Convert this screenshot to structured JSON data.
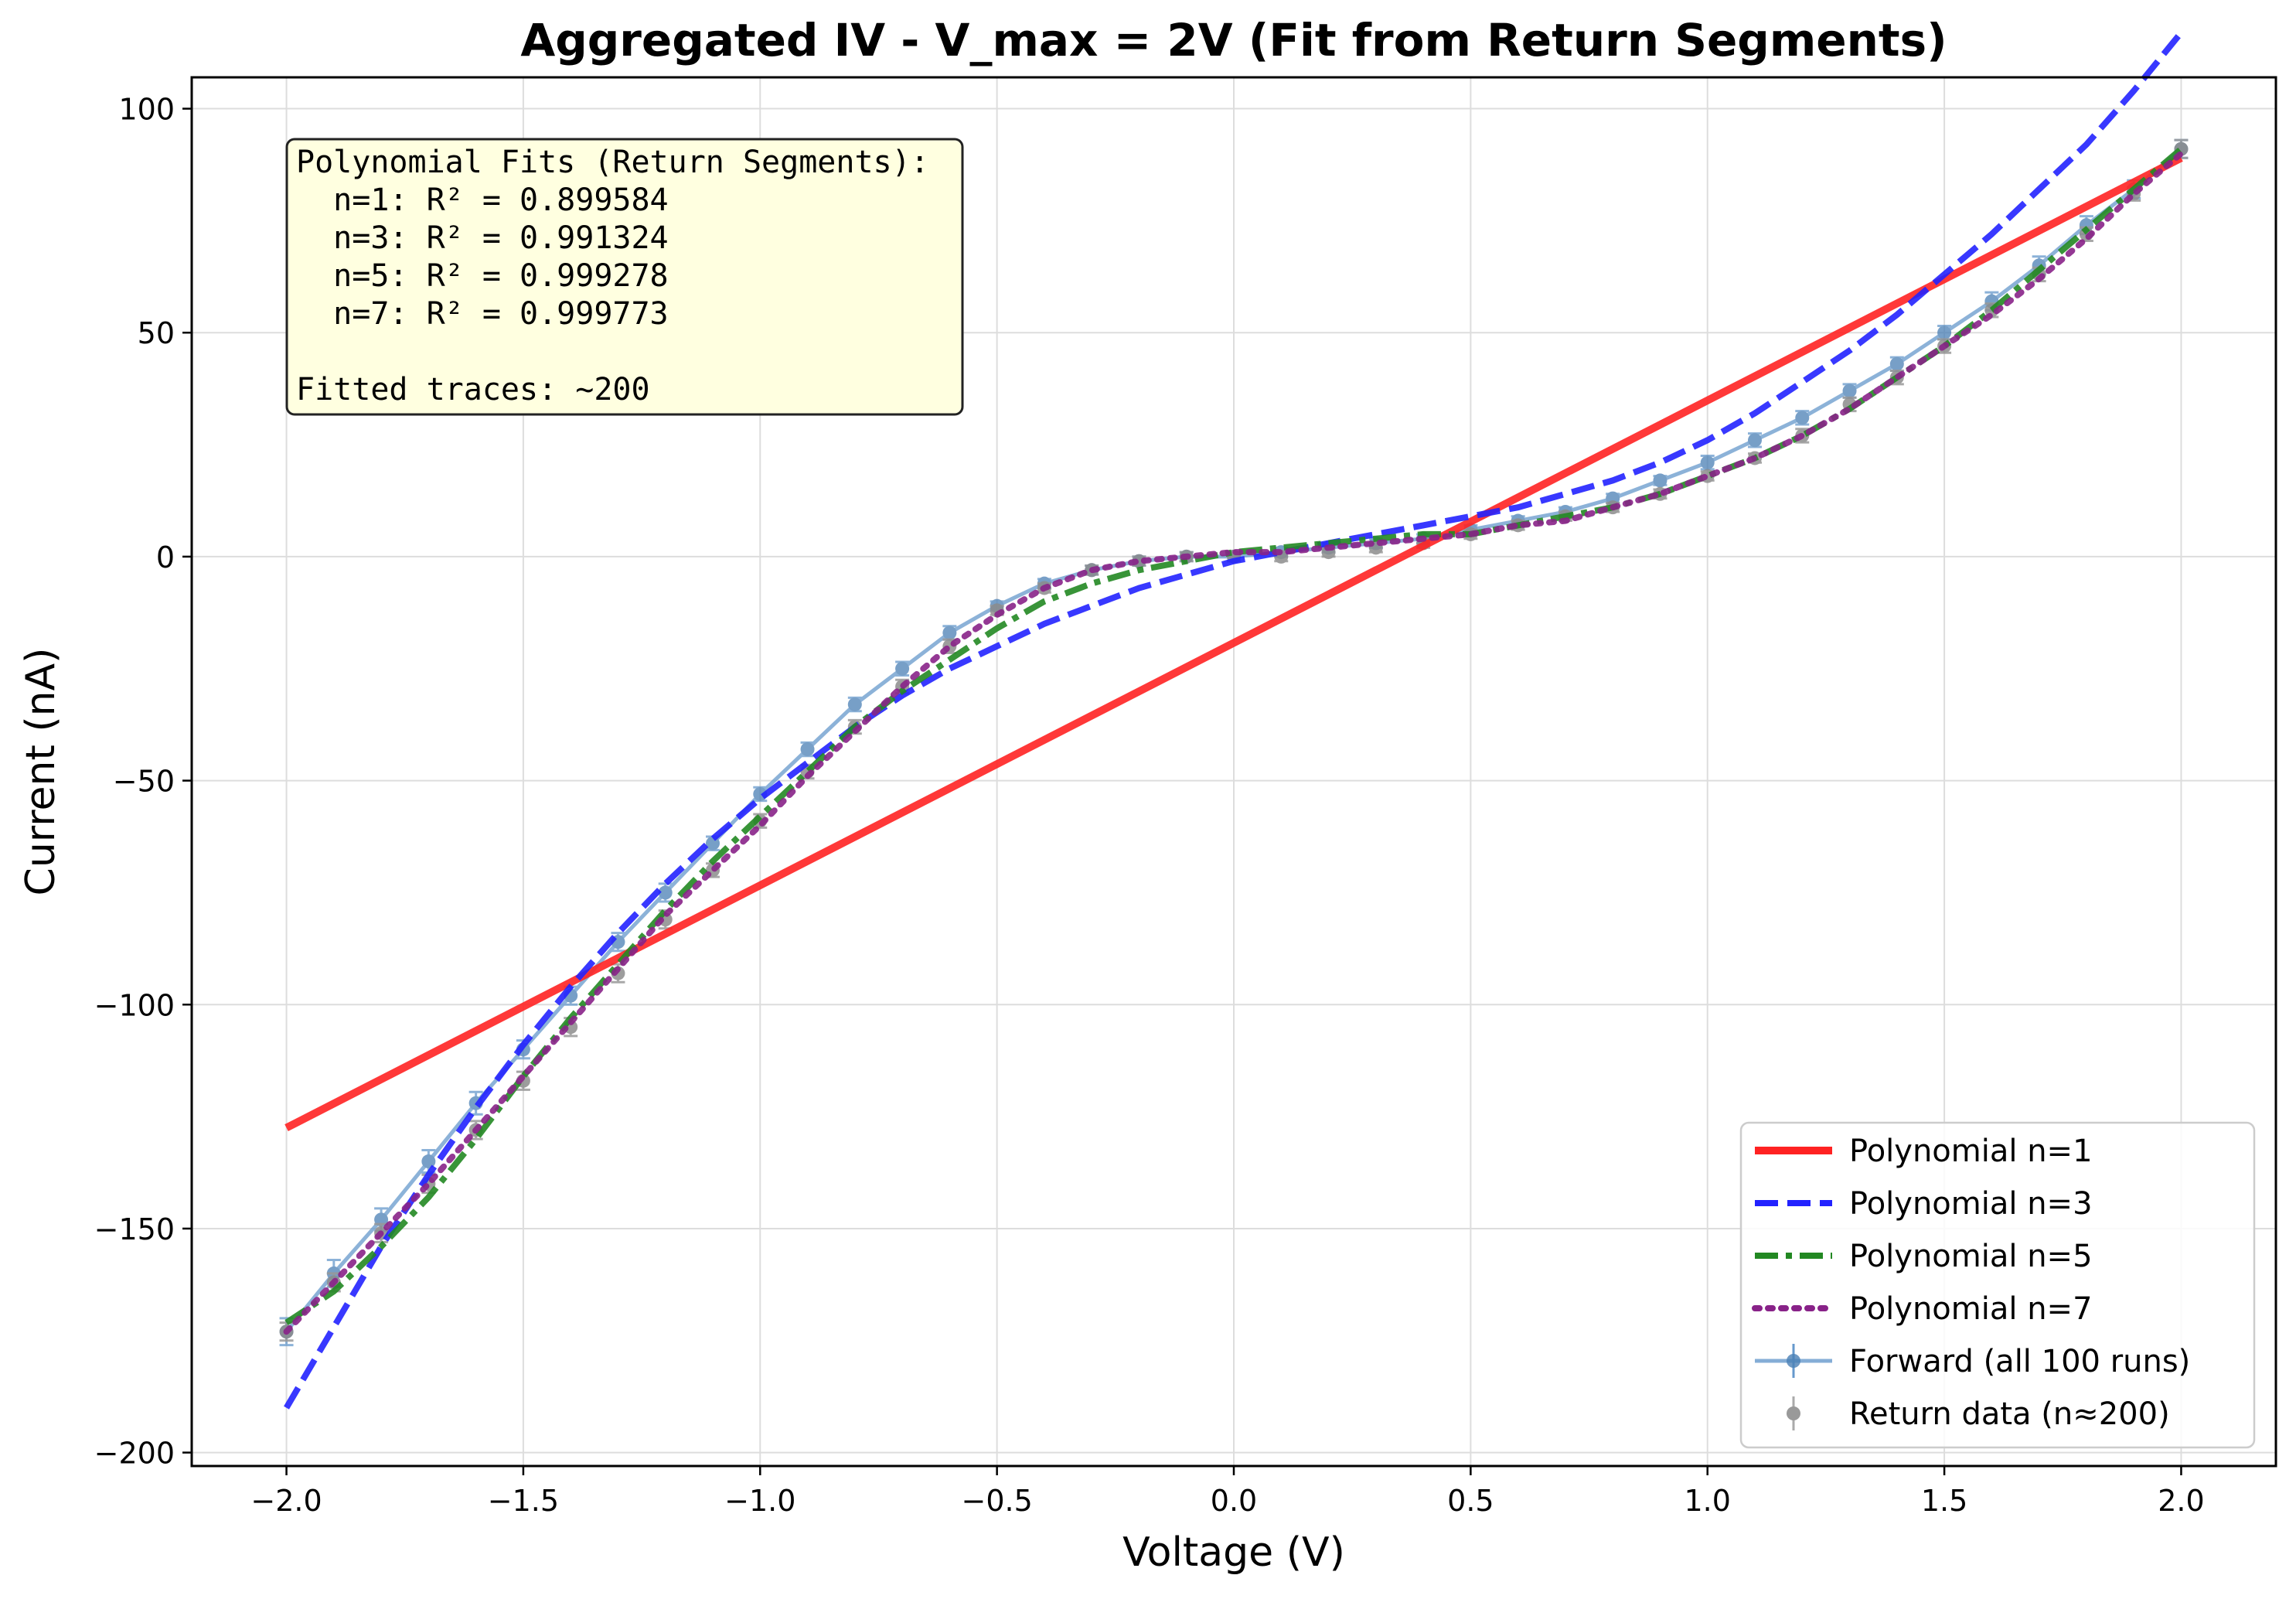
{
  "chart_data": {
    "type": "line",
    "title": "Aggregated IV - V_max = 2V (Fit from Return Segments)",
    "xlabel": "Voltage (V)",
    "ylabel": "Current (nA)",
    "xlim": [
      -2.2,
      2.2
    ],
    "ylim": [
      -203,
      107
    ],
    "xticks": [
      -2.0,
      -1.5,
      -1.0,
      -0.5,
      0.0,
      0.5,
      1.0,
      1.5,
      2.0
    ],
    "xtick_labels": [
      "−2.0",
      "−1.5",
      "−1.0",
      "−0.5",
      "0.0",
      "0.5",
      "1.0",
      "1.5",
      "2.0"
    ],
    "yticks": [
      100,
      50,
      0,
      -50,
      -100,
      -150,
      -200
    ],
    "ytick_labels": [
      "100",
      "50",
      "0",
      "−50",
      "−100",
      "−150",
      "−200"
    ],
    "grid": true,
    "legend_position": "lower-right",
    "annotation": {
      "lines": [
        "Polynomial Fits (Return Segments):",
        "  n=1: R² = 0.899584",
        "  n=3: R² = 0.991324",
        "  n=5: R² = 0.999278",
        "  n=7: R² = 0.999773",
        "",
        "Fitted traces: ~200"
      ]
    },
    "series": [
      {
        "name": "Polynomial n=1",
        "kind": "fit",
        "color": "#ff2222",
        "dash": "solid",
        "x": [
          -2.0,
          2.0
        ],
        "y": [
          -127.5,
          89
        ]
      },
      {
        "name": "Polynomial n=3",
        "kind": "fit",
        "color": "#2222ff",
        "dash": "dashed",
        "x": [
          -2.0,
          -1.9,
          -1.8,
          -1.7,
          -1.6,
          -1.5,
          -1.4,
          -1.3,
          -1.2,
          -1.1,
          -1.0,
          -0.9,
          -0.8,
          -0.7,
          -0.6,
          -0.5,
          -0.4,
          -0.3,
          -0.2,
          -0.1,
          0.0,
          0.1,
          0.2,
          0.3,
          0.4,
          0.5,
          0.6,
          0.7,
          0.8,
          0.9,
          1.0,
          1.1,
          1.2,
          1.3,
          1.4,
          1.5,
          1.6,
          1.7,
          1.8,
          1.9,
          2.0
        ],
        "y": [
          -190,
          -172,
          -154,
          -138,
          -123,
          -109,
          -96,
          -84,
          -73,
          -63,
          -54,
          -46,
          -38,
          -31,
          -25,
          -20,
          -15,
          -11,
          -7,
          -4,
          -1,
          1,
          3,
          5,
          7,
          9,
          11,
          14,
          17,
          21,
          26,
          32,
          39,
          46,
          54,
          63,
          72,
          82,
          92,
          104,
          117
        ]
      },
      {
        "name": "Polynomial n=5",
        "kind": "fit",
        "color": "#228822",
        "dash": "dashdot",
        "x": [
          -2.0,
          -1.9,
          -1.8,
          -1.7,
          -1.6,
          -1.5,
          -1.4,
          -1.3,
          -1.2,
          -1.1,
          -1.0,
          -0.9,
          -0.8,
          -0.7,
          -0.6,
          -0.5,
          -0.4,
          -0.3,
          -0.2,
          -0.1,
          0.0,
          0.1,
          0.2,
          0.3,
          0.4,
          0.5,
          0.6,
          0.7,
          0.8,
          0.9,
          1.0,
          1.1,
          1.2,
          1.3,
          1.4,
          1.5,
          1.6,
          1.7,
          1.8,
          1.9,
          2.0
        ],
        "y": [
          -171,
          -164,
          -154,
          -143,
          -130,
          -116,
          -103,
          -91,
          -79,
          -68,
          -58,
          -48,
          -38,
          -30,
          -23,
          -16,
          -10,
          -6,
          -3,
          -1,
          1,
          2,
          3,
          4,
          5,
          5,
          7,
          9,
          11,
          14,
          18,
          22,
          27,
          33,
          40,
          47,
          55,
          64,
          73,
          82,
          91
        ]
      },
      {
        "name": "Polynomial n=7",
        "kind": "fit",
        "color": "#882288",
        "dash": "dotted",
        "x": [
          -2.0,
          -1.9,
          -1.8,
          -1.7,
          -1.6,
          -1.5,
          -1.4,
          -1.3,
          -1.2,
          -1.1,
          -1.0,
          -0.9,
          -0.8,
          -0.7,
          -0.6,
          -0.5,
          -0.4,
          -0.3,
          -0.2,
          -0.1,
          0.0,
          0.1,
          0.2,
          0.3,
          0.4,
          0.5,
          0.6,
          0.7,
          0.8,
          0.9,
          1.0,
          1.1,
          1.2,
          1.3,
          1.4,
          1.5,
          1.6,
          1.7,
          1.8,
          1.9,
          2.0
        ],
        "y": [
          -173,
          -162,
          -151,
          -140,
          -128,
          -116,
          -104,
          -92,
          -80,
          -70,
          -60,
          -49,
          -39,
          -29,
          -20,
          -13,
          -7,
          -3,
          -1,
          0,
          1,
          1,
          2,
          3,
          4,
          5,
          7,
          8,
          11,
          14,
          18,
          22,
          27,
          33,
          40,
          47,
          54,
          62,
          71,
          81,
          90
        ]
      },
      {
        "name": "Forward (all 100 runs)",
        "kind": "errorbar",
        "color": "#6699cc",
        "x": [
          -2.0,
          -1.9,
          -1.8,
          -1.7,
          -1.6,
          -1.5,
          -1.4,
          -1.3,
          -1.2,
          -1.1,
          -1.0,
          -0.9,
          -0.8,
          -0.7,
          -0.6,
          -0.5,
          -0.4,
          -0.3,
          -0.2,
          -0.1,
          0.0,
          0.1,
          0.2,
          0.3,
          0.4,
          0.5,
          0.6,
          0.7,
          0.8,
          0.9,
          1.0,
          1.1,
          1.2,
          1.3,
          1.4,
          1.5,
          1.6,
          1.7,
          1.8,
          1.9,
          2.0
        ],
        "y": [
          -173,
          -160,
          -148,
          -135,
          -122,
          -110,
          -98,
          -86,
          -75,
          -64,
          -53,
          -43,
          -33,
          -25,
          -17,
          -11,
          -6,
          -3,
          -1,
          0,
          0,
          1,
          2,
          3,
          4,
          6,
          8,
          10,
          13,
          17,
          21,
          26,
          31,
          37,
          43,
          50,
          57,
          65,
          74,
          82,
          91
        ],
        "yerr": [
          3,
          3,
          2.5,
          2.5,
          2.5,
          2,
          2,
          2,
          2,
          1.5,
          1.5,
          1.5,
          1.5,
          1.5,
          1.5,
          1,
          1,
          1,
          1,
          1,
          1,
          1,
          1,
          1,
          1,
          1,
          1,
          1,
          1,
          1,
          1.5,
          1.5,
          1.5,
          1.5,
          1.5,
          1.5,
          2,
          2,
          2,
          2,
          2
        ]
      },
      {
        "name": "Return data (n≈200)",
        "kind": "errorbar",
        "color": "#888888",
        "x": [
          -2.0,
          -1.9,
          -1.8,
          -1.7,
          -1.6,
          -1.5,
          -1.4,
          -1.3,
          -1.2,
          -1.1,
          -1.0,
          -0.9,
          -0.8,
          -0.7,
          -0.6,
          -0.5,
          -0.4,
          -0.3,
          -0.2,
          -0.1,
          0.0,
          0.1,
          0.2,
          0.3,
          0.4,
          0.5,
          0.6,
          0.7,
          0.8,
          0.9,
          1.0,
          1.1,
          1.2,
          1.3,
          1.4,
          1.5,
          1.6,
          1.7,
          1.8,
          1.9,
          2.0
        ],
        "y": [
          -173,
          -162,
          -151,
          -140,
          -128,
          -117,
          -105,
          -93,
          -81,
          -70,
          -59,
          -48,
          -38,
          -29,
          -20,
          -12,
          -7,
          -3,
          -1,
          0,
          0,
          0,
          1,
          2,
          3,
          5,
          7,
          9,
          11,
          14,
          18,
          22,
          27,
          34,
          40,
          47,
          55,
          63,
          72,
          81,
          91
        ],
        "yerr": [
          2,
          2,
          2,
          2,
          2,
          2,
          2,
          2,
          2,
          1.5,
          1.5,
          1.5,
          1.5,
          1.5,
          1.5,
          1,
          1,
          1,
          1,
          1,
          1,
          1,
          1,
          1,
          1,
          1,
          1,
          1,
          1,
          1,
          1,
          1,
          1.5,
          1.5,
          1.5,
          1.5,
          1.5,
          1.5,
          1.5,
          1.5,
          2
        ]
      }
    ]
  }
}
